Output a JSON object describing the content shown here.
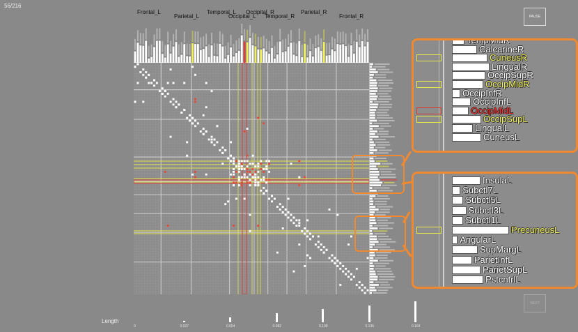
{
  "counter": "56/216",
  "regions_top": [
    {
      "label": "Frontal_L"
    },
    {
      "label": "Parietal_L"
    },
    {
      "label": "Temporal_L"
    },
    {
      "label": "Occipital_R"
    },
    {
      "label": "Occipital_L"
    },
    {
      "label": "Temporal_R"
    },
    {
      "label": "Parietal_R"
    },
    {
      "label": "Frontal_R"
    }
  ],
  "buttons": {
    "pause": "PAUSE",
    "next": "NEXT"
  },
  "zoom_top": {
    "rows": [
      {
        "label": "TempMidR",
        "color": "#ffffff",
        "bar": 0.3,
        "highlight": "none"
      },
      {
        "label": "CalcarineR",
        "color": "#ffffff",
        "bar": 0.6,
        "highlight": "none"
      },
      {
        "label": "CuneusR",
        "color": "#f2f25a",
        "bar": 0.85,
        "highlight": "yellow"
      },
      {
        "label": "LingualR",
        "color": "#ffffff",
        "bar": 0.9,
        "highlight": "none"
      },
      {
        "label": "OccipSupR",
        "color": "#ffffff",
        "bar": 0.8,
        "highlight": "none"
      },
      {
        "label": "OccipMidR",
        "color": "#f2f25a",
        "bar": 0.75,
        "highlight": "yellow"
      },
      {
        "label": "OccipInfR",
        "color": "#ffffff",
        "bar": 0.2,
        "highlight": "none"
      },
      {
        "label": "OccipInfL",
        "color": "#ffffff",
        "bar": 0.45,
        "highlight": "none"
      },
      {
        "label": "OccipMidL",
        "color": "#ff2a2a",
        "bar": 0.4,
        "highlight": "red"
      },
      {
        "label": "OccipSupL",
        "color": "#f2f25a",
        "bar": 0.7,
        "highlight": "yellow"
      },
      {
        "label": "LingualL",
        "color": "#ffffff",
        "bar": 0.5,
        "highlight": "none"
      },
      {
        "label": "CuneusL",
        "color": "#ffffff",
        "bar": 0.7,
        "highlight": "none"
      }
    ]
  },
  "zoom_bottom": {
    "rows": [
      {
        "label": "InsulaL",
        "color": "#ffffff",
        "bar": 0.5,
        "highlight": "none"
      },
      {
        "label": "Subctl7L",
        "color": "#ffffff",
        "bar": 0.15,
        "highlight": "none"
      },
      {
        "label": "Subctl5L",
        "color": "#ffffff",
        "bar": 0.2,
        "highlight": "none"
      },
      {
        "label": "Subctl3L",
        "color": "#ffffff",
        "bar": 0.25,
        "highlight": "none"
      },
      {
        "label": "Subctl1L",
        "color": "#ffffff",
        "bar": 0.2,
        "highlight": "none"
      },
      {
        "label": "PrecuneusL",
        "color": "#f2f25a",
        "bar": 1.0,
        "highlight": "yellow"
      },
      {
        "label": "AngularL",
        "color": "#ffffff",
        "bar": 0.1,
        "highlight": "none"
      },
      {
        "label": "SupMargL",
        "color": "#ffffff",
        "bar": 0.45,
        "highlight": "none"
      },
      {
        "label": "ParietInfL",
        "color": "#ffffff",
        "bar": 0.35,
        "highlight": "none"
      },
      {
        "label": "ParietSupL",
        "color": "#ffffff",
        "bar": 0.5,
        "highlight": "none"
      },
      {
        "label": "PstcntrlL",
        "color": "#ffffff",
        "bar": 0.55,
        "highlight": "none"
      }
    ]
  },
  "length_axis": {
    "label": "Length",
    "ticks": [
      "0",
      "0.027",
      "0.054",
      "0.082",
      "0.109",
      "0.136",
      "0.164"
    ],
    "bar_levels": [
      0.0,
      0.08,
      0.25,
      0.45,
      0.65,
      0.8,
      1.0
    ]
  },
  "colors": {
    "accent": "#f0892f",
    "highlight_yellow": "#e5e54a",
    "highlight_red": "#e23c3c",
    "cell": "#ffffff",
    "cell_red": "#e44a3a"
  }
}
